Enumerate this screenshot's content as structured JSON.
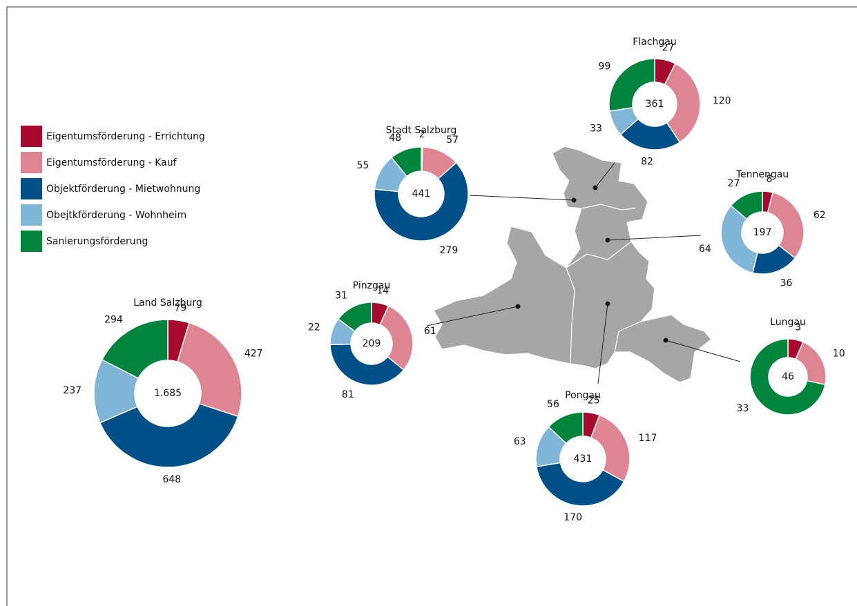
{
  "legend": {
    "categories": [
      "Eigentumsförderung - Errichtung",
      "Eigentumsförderung - Kauf",
      "Objektförderung - Mietwohnung",
      "Obejtkförderung - Wohnheim",
      "Sanierungsförderung"
    ],
    "colors": [
      "#a6092e",
      "#dd8592",
      "#004f86",
      "#80b5d7",
      "#00843d"
    ]
  },
  "chart_data": [
    {
      "type": "pie",
      "title": "Land Salzburg",
      "total_label": "1.685",
      "values": [
        79,
        427,
        648,
        237,
        294
      ]
    },
    {
      "type": "pie",
      "title": "Stadt Salzburg",
      "total_label": "441",
      "values": [
        2,
        57,
        279,
        55,
        48
      ]
    },
    {
      "type": "pie",
      "title": "Flachgau",
      "total_label": "361",
      "values": [
        27,
        120,
        82,
        33,
        99
      ]
    },
    {
      "type": "pie",
      "title": "Tennengau",
      "total_label": "197",
      "values": [
        8,
        62,
        36,
        64,
        27
      ]
    },
    {
      "type": "pie",
      "title": "Pinzgau",
      "total_label": "209",
      "values": [
        14,
        61,
        81,
        22,
        31
      ]
    },
    {
      "type": "pie",
      "title": "Pongau",
      "total_label": "431",
      "values": [
        25,
        117,
        170,
        63,
        56
      ]
    },
    {
      "type": "pie",
      "title": "Lungau",
      "total_label": "46",
      "values": [
        3,
        10,
        null,
        null,
        33
      ]
    }
  ]
}
